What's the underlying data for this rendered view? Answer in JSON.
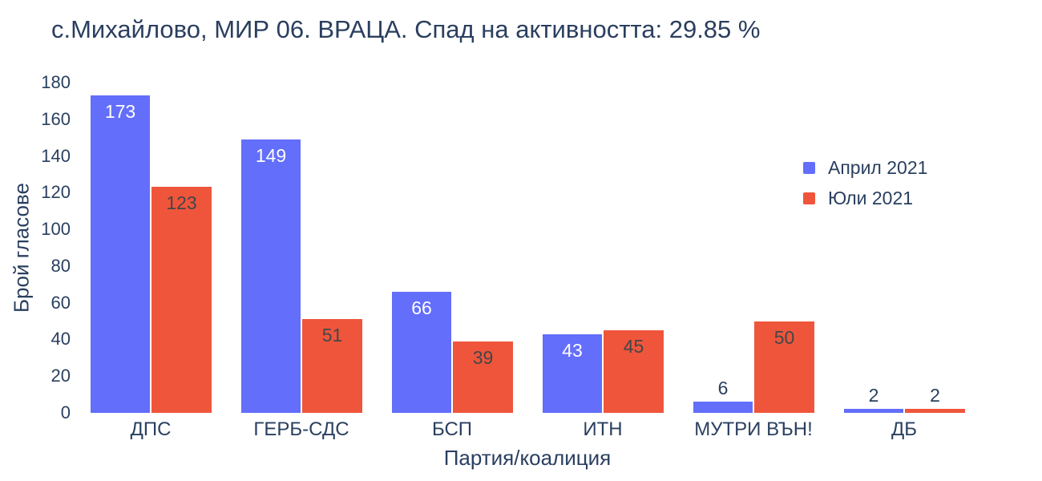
{
  "chart": {
    "title": "с.Михайлово, МИР 06. ВРАЦА. Спад на активността: 29.85 %",
    "xlabel": "Партия/коалиция",
    "ylabel": "Брой гласове"
  },
  "chart_data": {
    "type": "bar",
    "title": "с.Михайлово, МИР 06. ВРАЦА. Спад на активността: 29.85 %",
    "xlabel": "Партия/коалиция",
    "ylabel": "Брой гласове",
    "categories": [
      "ДПС",
      "ГЕРБ-СДС",
      "БСП",
      "ИТН",
      "МУТРИ ВЪН!",
      "ДБ"
    ],
    "series": [
      {
        "name": "Април 2021",
        "color": "#636EFA",
        "values": [
          173,
          149,
          66,
          43,
          6,
          2
        ]
      },
      {
        "name": "Юли 2021",
        "color": "#EF553B",
        "values": [
          123,
          51,
          39,
          45,
          50,
          2
        ]
      }
    ],
    "ylim": [
      0,
      180
    ],
    "yticks": [
      0,
      20,
      40,
      60,
      80,
      100,
      120,
      140,
      160,
      180
    ],
    "grid": false,
    "legend_position": "right-inside",
    "bar_labels_shown": true
  },
  "colors": {
    "text": "#2a3f5f",
    "april_bar": "#636EFA",
    "july_bar": "#EF553B",
    "label_inside_blue": "#ffffff",
    "label_inside_red": "#434649",
    "label_outside": "#2a3f5f",
    "background": "#ffffff"
  }
}
